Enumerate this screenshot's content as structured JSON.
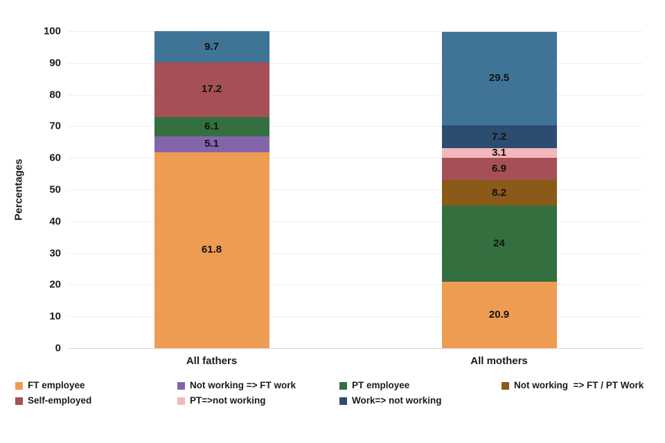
{
  "chart_data": {
    "type": "bar",
    "stacked": true,
    "orientation": "vertical",
    "title": "",
    "xlabel": "",
    "ylabel": "Percentages",
    "ylim": [
      0,
      100
    ],
    "yticks": [
      0,
      10,
      20,
      30,
      40,
      50,
      60,
      70,
      80,
      90,
      100
    ],
    "grid": true,
    "data_labels": true,
    "legend_position": "bottom",
    "categories": [
      "All fathers",
      "All mothers"
    ],
    "series": [
      {
        "name": "FT employee",
        "color": "#EE9C51",
        "values": [
          61.8,
          20.9
        ],
        "in_legend": true
      },
      {
        "name": "Not working => FT work",
        "color": "#8465AC",
        "values": [
          5.1,
          null
        ],
        "in_legend": true
      },
      {
        "name": "PT employee",
        "color": "#34703F",
        "values": [
          6.1,
          24
        ],
        "in_legend": true
      },
      {
        "name": "Not working  => FT / PT Work",
        "color": "#8A5A19",
        "values": [
          null,
          8.2
        ],
        "in_legend": true
      },
      {
        "name": "Self-employed",
        "color": "#A45056",
        "values": [
          17.2,
          6.9
        ],
        "in_legend": true
      },
      {
        "name": "PT=>not working",
        "color": "#F2B7BB",
        "values": [
          null,
          3.1
        ],
        "in_legend": true
      },
      {
        "name": "Work=> not working",
        "color": "#2D4D70",
        "values": [
          null,
          7.2
        ],
        "in_legend": true
      },
      {
        "name": "",
        "color": "#3F7496",
        "values": [
          9.7,
          29.5
        ],
        "in_legend": false
      }
    ],
    "legend_order": [
      "FT employee",
      "Not working => FT work",
      "PT employee",
      "Not working  => FT / PT Work",
      "Self-employed",
      "PT=>not working",
      "Work=> not working"
    ],
    "colors": {
      "background": "#ffffff",
      "gridline": "#efefef",
      "axis_line": "#d8d8d8",
      "text": "#1a1a1a"
    }
  }
}
